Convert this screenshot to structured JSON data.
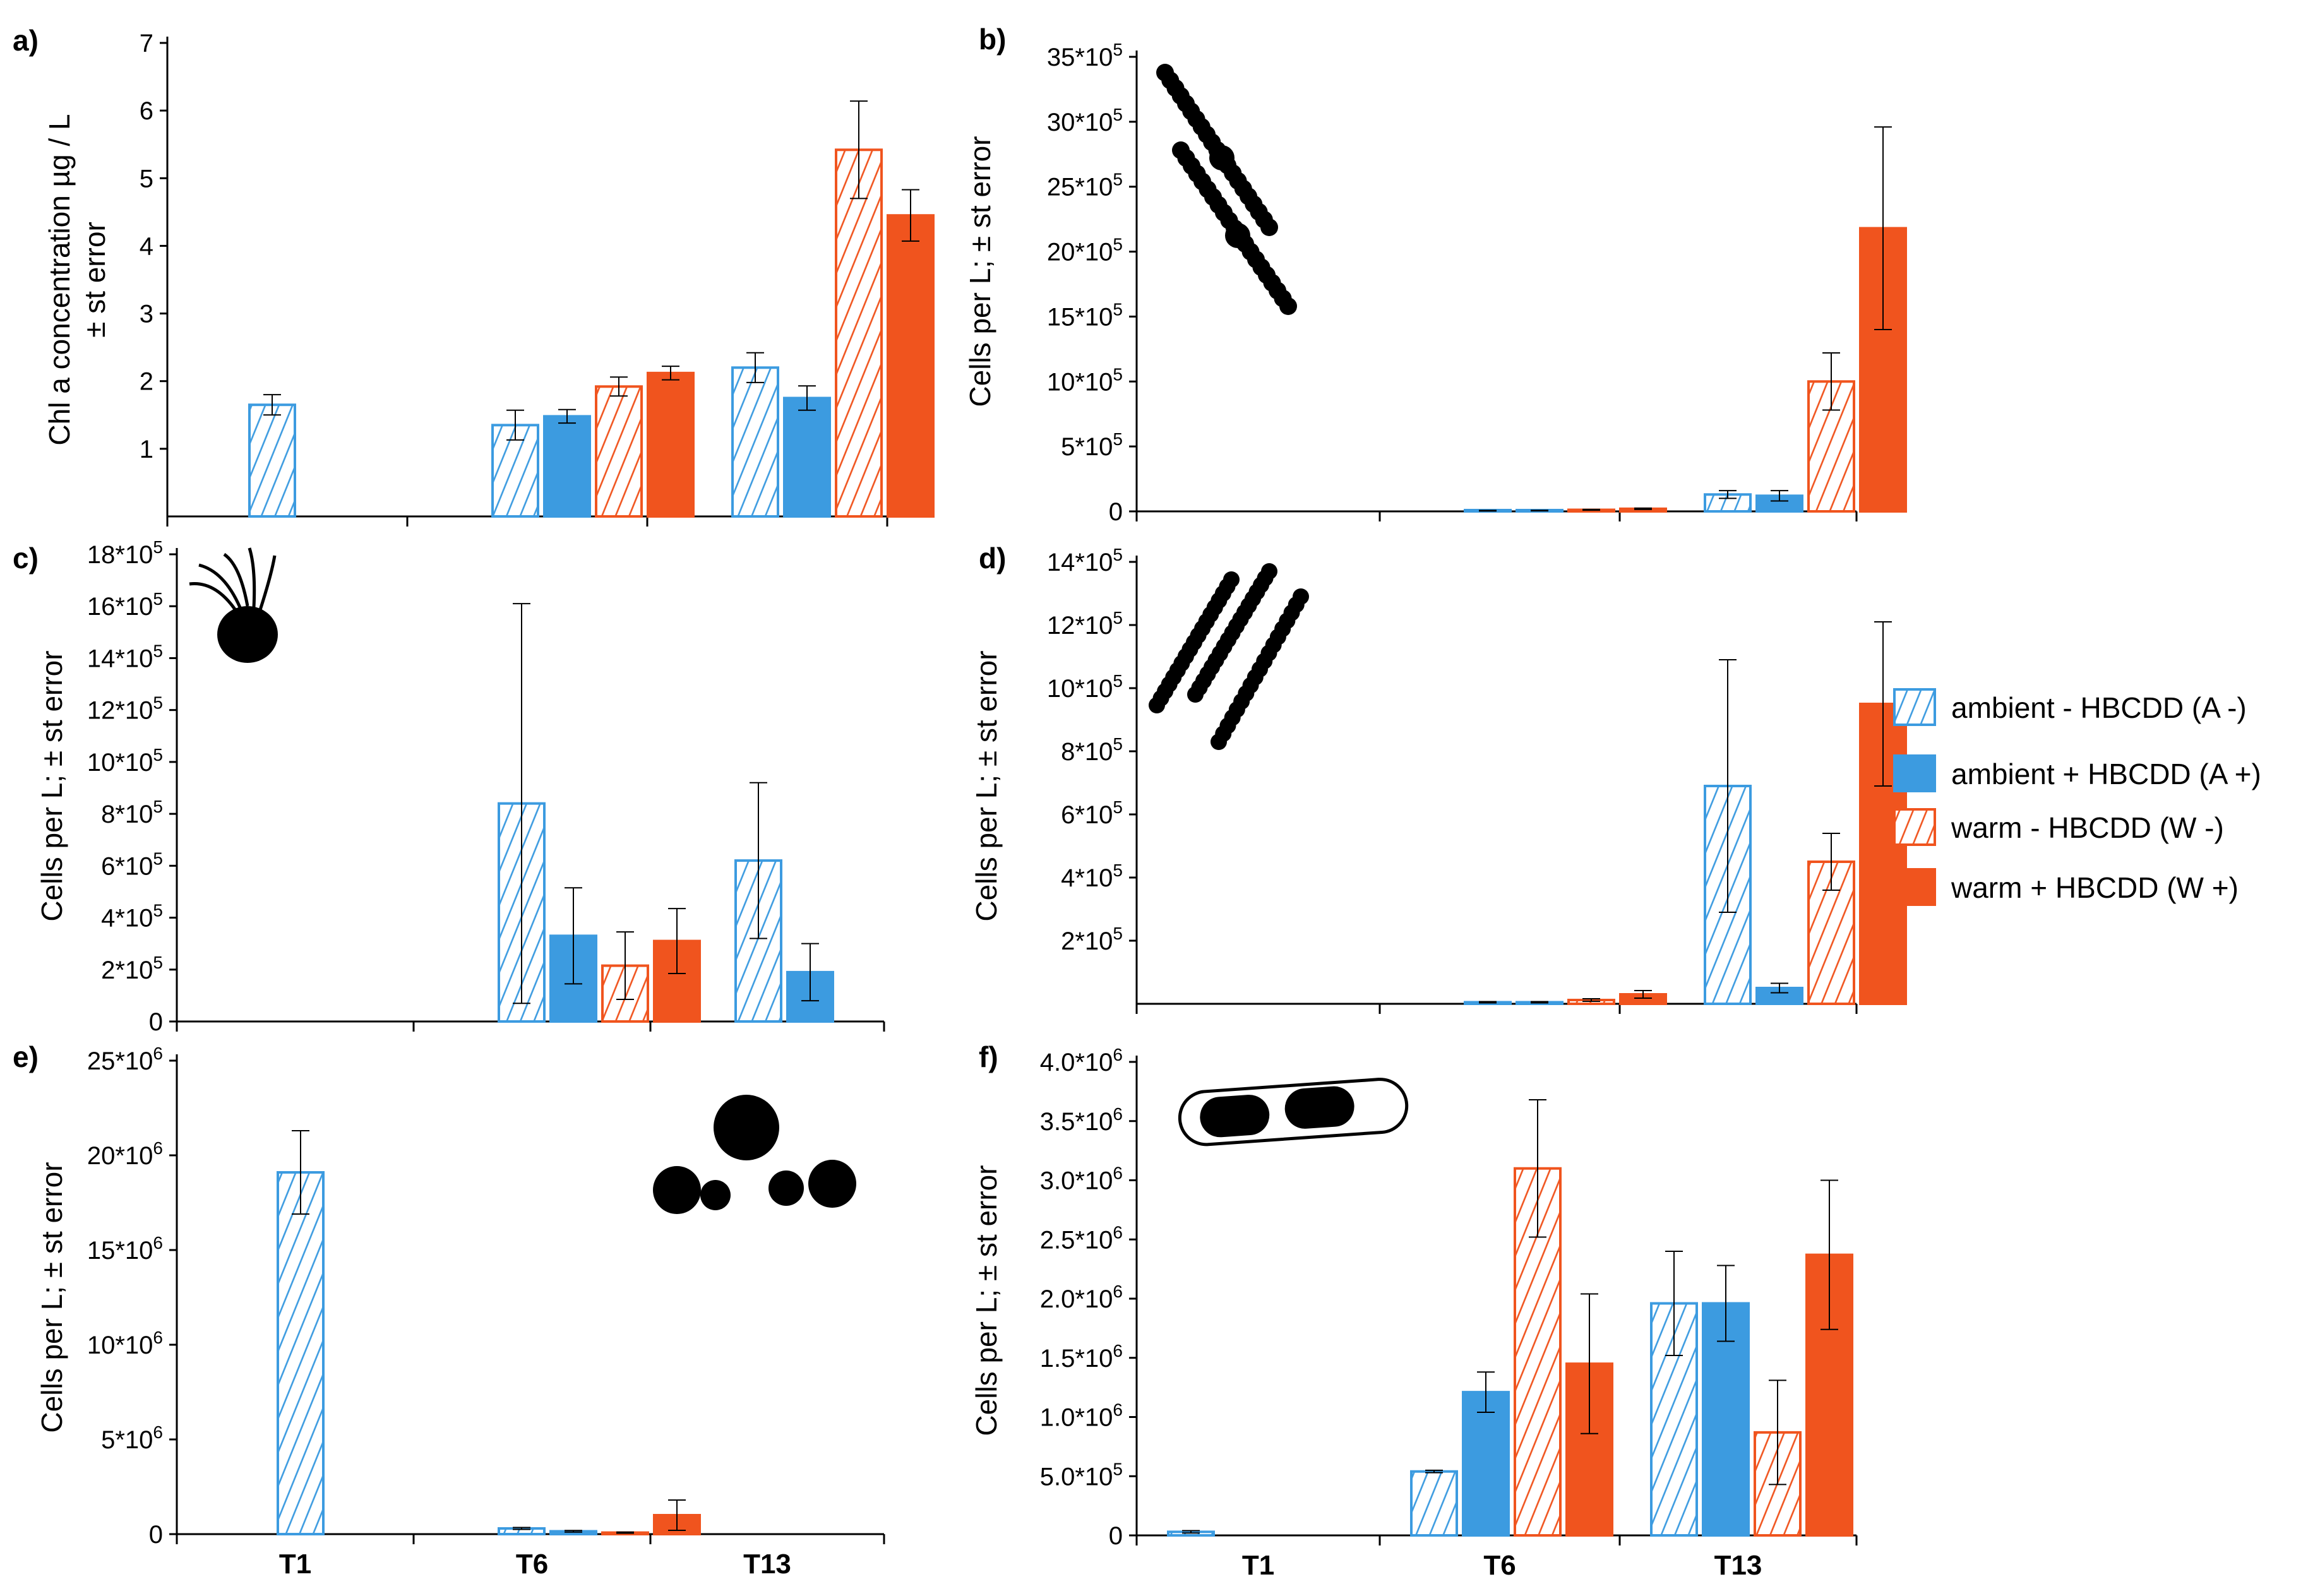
{
  "colors": {
    "ambient": "#3C9BE0",
    "warm": "#F0541E",
    "axis": "#000000",
    "error": "#000000"
  },
  "legend": {
    "placement": "right",
    "items": [
      {
        "label": "ambient - HBCDD (A -)",
        "color": "#3C9BE0",
        "style": "hatched"
      },
      {
        "label": "ambient + HBCDD (A +)",
        "color": "#3C9BE0",
        "style": "solid"
      },
      {
        "label": "warm - HBCDD (W -)",
        "color": "#F0541E",
        "style": "hatched"
      },
      {
        "label": "warm + HBCDD (W +)",
        "color": "#F0541E",
        "style": "solid"
      }
    ]
  },
  "chart_data": [
    {
      "id": "a",
      "panel_label": "a)",
      "type": "bar",
      "ylabel": [
        "Chl a concentration µg / L",
        "± st error"
      ],
      "ylim": [
        0,
        7
      ],
      "yticks": [
        1,
        2,
        3,
        4,
        5,
        6,
        7
      ],
      "ytick_labels": [
        "1",
        "2",
        "3",
        "4",
        "5",
        "6",
        "7"
      ],
      "categories": [
        "T1",
        "T6",
        "T13"
      ],
      "show_category_labels": false,
      "series": [
        {
          "name": "ambient - HBCDD (A -)",
          "values": [
            1.65,
            1.35,
            2.2
          ],
          "errors": [
            0.15,
            0.22,
            0.22
          ]
        },
        {
          "name": "ambient + HBCDD (A +)",
          "values": [
            null,
            1.48,
            1.75
          ],
          "errors": [
            null,
            0.1,
            0.18
          ]
        },
        {
          "name": "warm - HBCDD (W -)",
          "values": [
            null,
            1.92,
            5.42
          ],
          "errors": [
            null,
            0.14,
            0.72
          ]
        },
        {
          "name": "warm + HBCDD (W +)",
          "values": [
            null,
            2.12,
            4.45
          ],
          "errors": [
            null,
            0.1,
            0.38
          ]
        }
      ],
      "icon": ""
    },
    {
      "id": "b",
      "panel_label": "b)",
      "type": "bar",
      "ylabel": [
        "Cells per L;  ± st error"
      ],
      "ylim": [
        0,
        3500000
      ],
      "yticks": [
        0,
        500000,
        1000000,
        1500000,
        2000000,
        2500000,
        3000000,
        3500000
      ],
      "ytick_labels": [
        "0",
        "5*10^5",
        "10*10^5",
        "15*10^5",
        "20*10^5",
        "25*10^5",
        "30*10^5",
        "35*10^5"
      ],
      "categories": [
        "T1",
        "T6",
        "T13"
      ],
      "show_category_labels": false,
      "series": [
        {
          "name": "ambient - HBCDD (A -)",
          "values": [
            null,
            5000,
            130000
          ],
          "errors": [
            null,
            2000,
            30000
          ]
        },
        {
          "name": "ambient + HBCDD (A +)",
          "values": [
            null,
            6000,
            120000
          ],
          "errors": [
            null,
            2000,
            40000
          ]
        },
        {
          "name": "warm - HBCDD (W -)",
          "values": [
            null,
            12000,
            1000000
          ],
          "errors": [
            null,
            3000,
            220000
          ]
        },
        {
          "name": "warm + HBCDD (W +)",
          "values": [
            null,
            20000,
            2180000
          ],
          "errors": [
            null,
            5000,
            780000
          ]
        }
      ],
      "icon": "chain-diatom"
    },
    {
      "id": "c",
      "panel_label": "c)",
      "type": "bar",
      "ylabel": [
        "Cells per L; ± st error"
      ],
      "ylim": [
        0,
        1800000
      ],
      "yticks": [
        0,
        200000,
        400000,
        600000,
        800000,
        1000000,
        1200000,
        1400000,
        1600000,
        1800000
      ],
      "ytick_labels": [
        "0",
        "2*10^5",
        "4*10^5",
        "6*10^5",
        "8*10^5",
        "10*10^5",
        "12*10^5",
        "14*10^5",
        "16*10^5",
        "18*10^5"
      ],
      "categories": [
        "T1",
        "T6",
        "T13"
      ],
      "show_category_labels": false,
      "series": [
        {
          "name": "ambient - HBCDD (A -)",
          "values": [
            null,
            840000,
            620000
          ],
          "errors": [
            null,
            770000,
            300000
          ]
        },
        {
          "name": "ambient + HBCDD (A +)",
          "values": [
            null,
            330000,
            190000
          ],
          "errors": [
            null,
            185000,
            110000
          ]
        },
        {
          "name": "warm - HBCDD (W -)",
          "values": [
            null,
            215000,
            null
          ],
          "errors": [
            null,
            130000,
            null
          ]
        },
        {
          "name": "warm + HBCDD (W +)",
          "values": [
            null,
            310000,
            null
          ],
          "errors": [
            null,
            125000,
            null
          ]
        }
      ],
      "icon": "flagellate"
    },
    {
      "id": "d",
      "panel_label": "d)",
      "type": "bar",
      "ylabel": [
        "Cells per L;  ± st error"
      ],
      "ylim": [
        0,
        1400000
      ],
      "yticks": [
        200000,
        400000,
        600000,
        800000,
        1000000,
        1200000,
        1400000
      ],
      "ytick_labels": [
        "2*10^5",
        "4*10^5",
        "6*10^5",
        "8*10^5",
        "10*10^5",
        "12*10^5",
        "14*10^5"
      ],
      "categories": [
        "T1",
        "T6",
        "T13"
      ],
      "show_category_labels": false,
      "series": [
        {
          "name": "ambient - HBCDD (A -)",
          "values": [
            null,
            5000,
            690000
          ],
          "errors": [
            null,
            2000,
            400000
          ]
        },
        {
          "name": "ambient + HBCDD (A +)",
          "values": [
            null,
            5000,
            50000
          ],
          "errors": [
            null,
            2000,
            15000
          ]
        },
        {
          "name": "warm - HBCDD (W -)",
          "values": [
            null,
            12000,
            450000
          ],
          "errors": [
            null,
            4000,
            90000
          ]
        },
        {
          "name": "warm + HBCDD (W +)",
          "values": [
            null,
            30000,
            950000
          ],
          "errors": [
            null,
            12000,
            260000
          ]
        }
      ],
      "icon": "filament-chains"
    },
    {
      "id": "e",
      "panel_label": "e)",
      "type": "bar",
      "ylabel": [
        "Cells per L;  ± st error"
      ],
      "ylim": [
        0,
        25000000
      ],
      "yticks": [
        0,
        5000000,
        10000000,
        15000000,
        20000000,
        25000000
      ],
      "ytick_labels": [
        "0",
        "5*10^6",
        "10*10^6",
        "15*10^6",
        "20*10^6",
        "25*10^6"
      ],
      "categories": [
        "T1",
        "T6",
        "T13"
      ],
      "show_category_labels": true,
      "series": [
        {
          "name": "ambient - HBCDD (A -)",
          "values": [
            19100000,
            300000,
            null
          ],
          "errors": [
            2200000,
            50000,
            null
          ]
        },
        {
          "name": "ambient + HBCDD (A +)",
          "values": [
            null,
            150000,
            null
          ],
          "errors": [
            null,
            40000,
            null
          ]
        },
        {
          "name": "warm - HBCDD (W -)",
          "values": [
            null,
            80000,
            null
          ],
          "errors": [
            null,
            30000,
            null
          ]
        },
        {
          "name": "warm + HBCDD (W +)",
          "values": [
            null,
            1000000,
            null
          ],
          "errors": [
            null,
            800000,
            null
          ]
        }
      ],
      "icon": "coccoid-cells"
    },
    {
      "id": "f",
      "panel_label": "f)",
      "type": "bar",
      "ylabel": [
        "Cells per L;  ± st error"
      ],
      "ylim": [
        0,
        4000000
      ],
      "yticks": [
        0,
        500000,
        1000000,
        1500000,
        2000000,
        2500000,
        3000000,
        3500000,
        4000000
      ],
      "ytick_labels": [
        "0",
        "5.0*10^5",
        "1.0*10^6",
        "1.5*10^6",
        "2.0*10^6",
        "2.5*10^6",
        "3.0*10^6",
        "3.5*10^6",
        "4.0*10^6"
      ],
      "categories": [
        "T1",
        "T6",
        "T13"
      ],
      "show_category_labels": true,
      "series": [
        {
          "name": "ambient - HBCDD (A -)",
          "values": [
            30000,
            540000,
            1960000
          ],
          "errors": [
            10000,
            10000,
            440000
          ]
        },
        {
          "name": "ambient + HBCDD (A +)",
          "values": [
            null,
            1210000,
            1960000
          ],
          "errors": [
            null,
            170000,
            320000
          ]
        },
        {
          "name": "warm - HBCDD (W -)",
          "values": [
            null,
            3100000,
            870000
          ],
          "errors": [
            null,
            580000,
            440000
          ]
        },
        {
          "name": "warm + HBCDD (W +)",
          "values": [
            null,
            1450000,
            2370000
          ],
          "errors": [
            null,
            590000,
            630000
          ]
        }
      ],
      "icon": "capsule-cells"
    }
  ]
}
